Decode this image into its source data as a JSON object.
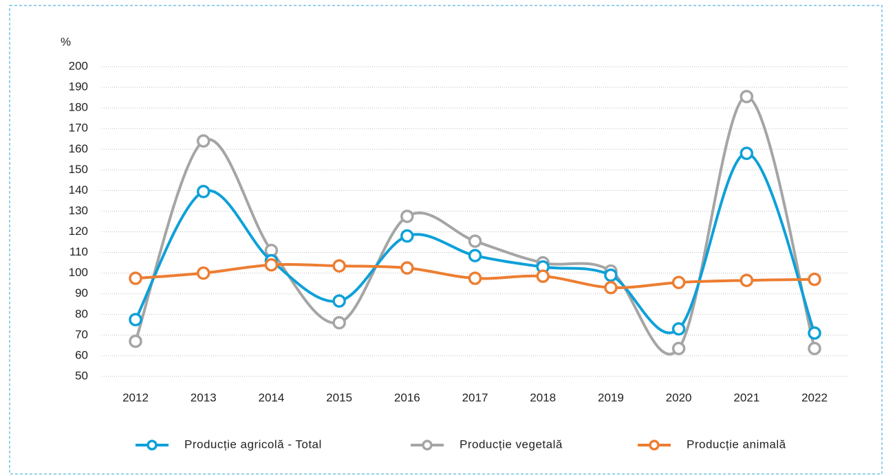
{
  "chart_data": {
    "type": "line",
    "y_axis_label": "%",
    "categories": [
      "2012",
      "2013",
      "2014",
      "2015",
      "2016",
      "2017",
      "2018",
      "2019",
      "2020",
      "2021",
      "2022"
    ],
    "series": [
      {
        "name": "Producție agricolă - Total",
        "color": "#0ea0d8",
        "values": [
          77.5,
          139.5,
          106,
          86.5,
          118,
          108.5,
          103,
          99,
          73,
          158,
          71
        ]
      },
      {
        "name": "Producție vegetală",
        "color": "#a5a5a5",
        "values": [
          67,
          164,
          111,
          76,
          127.5,
          115.5,
          105,
          101,
          63.5,
          185.5,
          63.5
        ]
      },
      {
        "name": "Producție animală",
        "color": "#ed7d31",
        "values": [
          97.5,
          100,
          104,
          103.5,
          102.5,
          97.5,
          98.5,
          93,
          95.5,
          96.5,
          97
        ]
      }
    ],
    "ylim": [
      50,
      200
    ],
    "yticks": [
      50,
      60,
      70,
      80,
      90,
      100,
      110,
      120,
      130,
      140,
      150,
      160,
      170,
      180,
      190,
      200
    ],
    "grid": true,
    "smooth": true,
    "legend": "bottom"
  }
}
